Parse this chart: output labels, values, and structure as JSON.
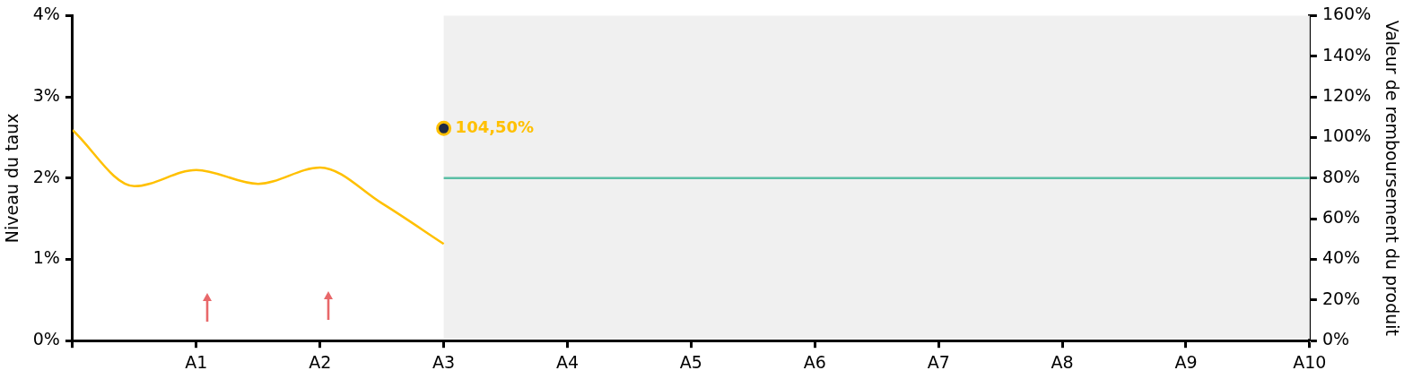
{
  "chart_data": {
    "type": "line",
    "ylabel": "Niveau du taux",
    "y2label": "Valeur de remboursement du produit",
    "categories": [
      null,
      null,
      "A1",
      null,
      "A2",
      null,
      "A3",
      null,
      "A4",
      null,
      "A5",
      null,
      "A6",
      null,
      "A7",
      null,
      "A8",
      null,
      "A9",
      null,
      "A10"
    ],
    "ylim": [
      0,
      4
    ],
    "yticks": [
      {
        "value": 0,
        "label": "0%"
      },
      {
        "value": 1,
        "label": "1%"
      },
      {
        "value": 2,
        "label": "2%"
      },
      {
        "value": 3,
        "label": "3%"
      },
      {
        "value": 4,
        "label": "4%"
      }
    ],
    "y2lim": [
      0,
      160
    ],
    "y2ticks": [
      {
        "value": 0,
        "label": "0%"
      },
      {
        "value": 20,
        "label": "20%"
      },
      {
        "value": 40,
        "label": "40%"
      },
      {
        "value": 60,
        "label": "60%"
      },
      {
        "value": 80,
        "label": "80%"
      },
      {
        "value": 100,
        "label": "100%"
      },
      {
        "value": 120,
        "label": "120%"
      },
      {
        "value": 140,
        "label": "140%"
      },
      {
        "value": 160,
        "label": "160%"
      }
    ],
    "grid": false,
    "legend": false,
    "bands": [
      {
        "axis": "x",
        "from": "A3",
        "to": "A10",
        "color": "#f0f0f0"
      }
    ],
    "series": [
      {
        "color": "#ffc000",
        "values": [
          2.59,
          1.9,
          2.1,
          1.93,
          2.13,
          1.69,
          1.19,
          null,
          null,
          null,
          null,
          null,
          null,
          null,
          null,
          null,
          null,
          null,
          null,
          null,
          null
        ]
      },
      {
        "type": "line",
        "axis": "y2",
        "color": "#5bbfa5",
        "x": [
          "A3",
          "A10"
        ],
        "values": [
          80,
          80
        ]
      },
      {
        "type": "scatter",
        "axis": "y2",
        "color": "#ffc000",
        "marker": "circle",
        "x": [
          "A3"
        ],
        "values": [
          104.5
        ],
        "value_labels": [
          "104,50%"
        ]
      }
    ]
  }
}
